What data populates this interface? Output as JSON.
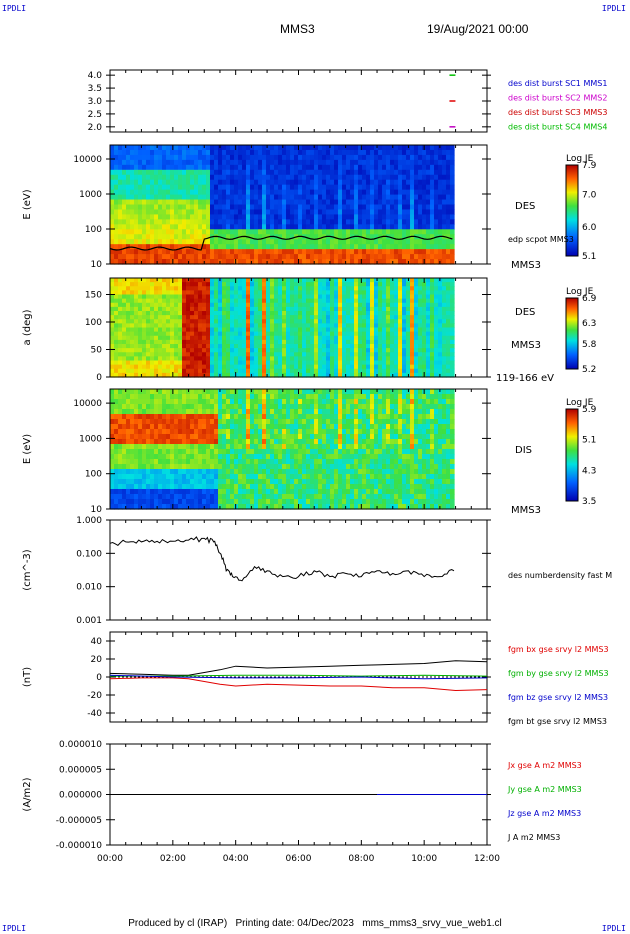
{
  "corners": {
    "tl": "IPDLI",
    "tr": "IPDLI",
    "bl": "IPDLI",
    "br": "IPDLI"
  },
  "header": {
    "spacecraft": "MMS3",
    "date": "19/Aug/2021 00:00"
  },
  "footer": {
    "producer": "Produced by cl (IRAP)",
    "printing": "Printing date: 04/Dec/2023",
    "file": "mms_mms3_srvy_vue_web1.cl"
  },
  "chart_data": [
    {
      "type": "scatter",
      "name": "burst-availability",
      "yticks": [
        "4.0",
        "3.5",
        "3.0",
        "2.5",
        "2.0"
      ],
      "ylim": [
        1.8,
        4.2
      ],
      "xlim": [
        0,
        12
      ],
      "points": [
        {
          "x": 10.9,
          "y": 4.0,
          "color": "#00c000"
        },
        {
          "x": 10.9,
          "y": 3.0,
          "color": "#e00000"
        },
        {
          "x": 10.9,
          "y": 2.0,
          "color": "#c000c0"
        }
      ],
      "legend": [
        {
          "label": "des dist burst SC1 MMS1",
          "color": "#0000cc"
        },
        {
          "label": "des dist burst SC2 MMS2",
          "color": "#cc00cc"
        },
        {
          "label": "des dist burst SC3 MMS3",
          "color": "#cc0000"
        },
        {
          "label": "des dist burst SC4 MMS4",
          "color": "#00bb00"
        }
      ]
    },
    {
      "type": "heatmap",
      "name": "des-energy-spectrogram",
      "ylabel": "E (eV)",
      "yticks": [
        "10000",
        "1000",
        "100",
        "10"
      ],
      "ylog": [
        1,
        4.4
      ],
      "right_labels": [
        "DES",
        "edp scpot MMS3",
        "MMS3"
      ],
      "colorbar": {
        "title": "Log JE",
        "ticks": [
          "7.9",
          "7.0",
          "6.0",
          "5.1"
        ],
        "range": [
          5.1,
          7.9
        ]
      }
    },
    {
      "type": "heatmap",
      "name": "des-pitch-angle",
      "ylabel": "a (deg)",
      "yticks": [
        "150",
        "100",
        "50",
        "0"
      ],
      "ylim": [
        0,
        180
      ],
      "right_labels": [
        "DES",
        "MMS3",
        "119-166 eV"
      ],
      "colorbar": {
        "title": "Log JE",
        "ticks": [
          "6.9",
          "6.3",
          "5.8",
          "5.2"
        ],
        "range": [
          5.2,
          6.9
        ]
      }
    },
    {
      "type": "heatmap",
      "name": "dis-energy-spectrogram",
      "ylabel": "E (eV)",
      "yticks": [
        "10000",
        "1000",
        "100",
        "10"
      ],
      "ylog": [
        1,
        4.4
      ],
      "right_labels": [
        "DIS",
        "MMS3"
      ],
      "colorbar": {
        "title": "Log JE",
        "ticks": [
          "5.9",
          "5.1",
          "4.3",
          "3.5"
        ],
        "range": [
          3.5,
          5.9
        ]
      }
    },
    {
      "type": "line",
      "name": "number-density",
      "ylabel": "(cm^-3)",
      "yticks": [
        "1.000",
        "0.100",
        "0.010",
        "0.001"
      ],
      "ylog": [
        -3,
        0
      ],
      "right_labels": [
        "des numberdensity fast M"
      ],
      "series": [
        {
          "name": "des numberdensity fast M",
          "color": "#000000",
          "x": [
            0,
            0.5,
            1,
            1.5,
            2,
            2.5,
            3.0,
            3.3,
            3.5,
            3.7,
            3.9,
            4.2,
            4.6,
            5.0,
            5.5,
            6.0,
            6.5,
            7.0,
            7.5,
            8.0,
            8.5,
            9.0,
            9.5,
            10.0,
            10.5,
            10.95
          ],
          "y": [
            0.2,
            0.22,
            0.22,
            0.23,
            0.23,
            0.25,
            0.28,
            0.22,
            0.1,
            0.03,
            0.02,
            0.015,
            0.04,
            0.03,
            0.02,
            0.02,
            0.03,
            0.02,
            0.025,
            0.02,
            0.03,
            0.025,
            0.03,
            0.02,
            0.02,
            0.03
          ]
        }
      ]
    },
    {
      "type": "line",
      "name": "magnetic-field",
      "ylabel": "(nT)",
      "yticks": [
        "40",
        "20",
        "0",
        "-20",
        "-40"
      ],
      "ylim": [
        -50,
        50
      ],
      "right_labels": [
        "fgm bx gse srvy l2 MMS3",
        "fgm by gse srvy l2 MMS3",
        "fgm bz gse srvy l2 MMS3",
        "fgm bt gse srvy l2 MMS3"
      ],
      "label_colors": [
        "#e00000",
        "#00b000",
        "#0000cc",
        "#000000"
      ],
      "series": [
        {
          "name": "fgm bt gse srvy l2 MMS3",
          "color": "#000000",
          "x": [
            0,
            1,
            2,
            2.5,
            3,
            3.5,
            4,
            5,
            6,
            7,
            8,
            9,
            10,
            11,
            12
          ],
          "y": [
            4,
            3,
            2,
            2,
            5,
            8,
            12,
            10,
            11,
            12,
            13,
            14,
            15,
            18,
            17
          ]
        },
        {
          "name": "fgm bx gse srvy l2 MMS3",
          "color": "#e00000",
          "x": [
            0,
            1,
            2,
            2.5,
            3,
            3.5,
            4,
            5,
            6,
            7,
            8,
            9,
            10,
            11,
            12
          ],
          "y": [
            -2,
            -1,
            -1,
            -2,
            -5,
            -8,
            -10,
            -8,
            -9,
            -10,
            -10,
            -12,
            -12,
            -15,
            -14
          ]
        },
        {
          "name": "fgm by gse srvy l2 MMS3",
          "color": "#00b000",
          "x": [
            0,
            2,
            4,
            6,
            8,
            10,
            12
          ],
          "y": [
            1,
            1,
            2,
            2,
            1,
            2,
            1
          ]
        },
        {
          "name": "fgm bz gse srvy l2 MMS3",
          "color": "#0000cc",
          "x": [
            0,
            2,
            4,
            6,
            8,
            10,
            12
          ],
          "y": [
            2,
            0,
            -1,
            -1,
            0,
            -2,
            -1
          ]
        }
      ]
    },
    {
      "type": "line",
      "name": "current-density",
      "ylabel": "(A/m2)",
      "yticks": [
        "0.000010",
        "0.000005",
        "0.000000",
        "-0.000005",
        "-0.000010"
      ],
      "ylim": [
        -1e-05,
        1e-05
      ],
      "right_labels": [
        "Jx gse A m2 MMS3",
        "Jy gse A m2 MMS3",
        "Jz gse A m2 MMS3",
        "J A m2 MMS3"
      ],
      "label_colors": [
        "#e00000",
        "#00b000",
        "#0000cc",
        "#000000"
      ],
      "series": [
        {
          "name": "J A m2 MMS3",
          "color": "#000000",
          "x": [
            0,
            12
          ],
          "y": [
            0,
            0
          ]
        },
        {
          "name": "Jz gse A m2 MMS3",
          "color": "#0000cc",
          "x": [
            8.5,
            12
          ],
          "y": [
            0,
            0
          ]
        }
      ],
      "xticks": [
        "00:00",
        "02:00",
        "04:00",
        "06:00",
        "08:00",
        "10:00",
        "12:00"
      ],
      "xlim": [
        0,
        12
      ]
    }
  ],
  "colors": {
    "axis": "#000000",
    "tick_text": "#000000"
  }
}
